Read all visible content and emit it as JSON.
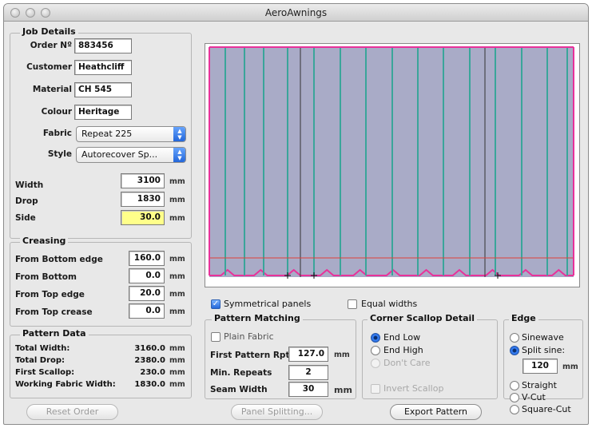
{
  "window": {
    "title": "AeroAwnings"
  },
  "job_details": {
    "title": "Job Details",
    "order_label": "Order Nº",
    "order_value": "883456",
    "customer_label": "Customer",
    "customer_value": "Heathcliff",
    "material_label": "Material",
    "material_value": "CH 545",
    "colour_label": "Colour",
    "colour_value": "Heritage",
    "fabric_label": "Fabric",
    "fabric_value": "Repeat 225",
    "style_label": "Style",
    "style_value": "Autorecover Sp..."
  },
  "dimensions": {
    "width_label": "Width",
    "width_value": "3100",
    "width_unit": "mm",
    "drop_label": "Drop",
    "drop_value": "1830",
    "drop_unit": "mm",
    "side_label": "Side",
    "side_value": "30.0",
    "side_unit": "mm"
  },
  "creasing": {
    "title": "Creasing",
    "rows": [
      {
        "label": "From Bottom edge",
        "value": "160.0",
        "unit": "mm"
      },
      {
        "label": "From Bottom",
        "value": "0.0",
        "unit": "mm"
      },
      {
        "label": "From Top edge",
        "value": "20.0",
        "unit": "mm"
      },
      {
        "label": "From Top crease",
        "value": "0.0",
        "unit": "mm"
      }
    ]
  },
  "pattern_data": {
    "title": "Pattern Data",
    "rows": [
      {
        "label": "Total Width:",
        "value": "3160.0",
        "unit": "mm"
      },
      {
        "label": "Total Drop:",
        "value": "2380.0",
        "unit": "mm"
      },
      {
        "label": "First Scallop:",
        "value": "230.0",
        "unit": "mm"
      },
      {
        "label": "Working Fabric Width:",
        "value": "1830.0",
        "unit": "mm"
      }
    ]
  },
  "options": {
    "symmetrical_panels": "Symmetrical panels",
    "equal_widths": "Equal widths"
  },
  "pattern_matching": {
    "title": "Pattern Matching",
    "plain_fabric": "Plain Fabric",
    "first_rpt_label": "First Pattern Rpt",
    "first_rpt_value": "127.0",
    "first_rpt_unit": "mm",
    "min_repeats_label": "Min. Repeats",
    "min_repeats_value": "2",
    "seam_width_label": "Seam Width",
    "seam_width_value": "30",
    "seam_width_unit": "mm"
  },
  "corner_scallop": {
    "title": "Corner Scallop Detail",
    "end_low": "End Low",
    "end_high": "End High",
    "dont_care": "Don't Care",
    "invert_scallop": "Invert Scallop"
  },
  "edge": {
    "title": "Edge",
    "sinewave": "Sinewave",
    "split_sine": "Split sine:",
    "split_value": "120",
    "split_unit": "mm",
    "straight": "Straight",
    "v_cut": "V-Cut",
    "square_cut": "Square-Cut"
  },
  "buttons": {
    "reset_order": "Reset Order",
    "panel_splitting": "Panel Splitting...",
    "export_pattern": "Export Pattern"
  },
  "colors": {
    "panel_fill": "#a9abc7",
    "panel_line": "#3aa59a",
    "border": "#e8329a",
    "crease_line": "#e0403a"
  }
}
